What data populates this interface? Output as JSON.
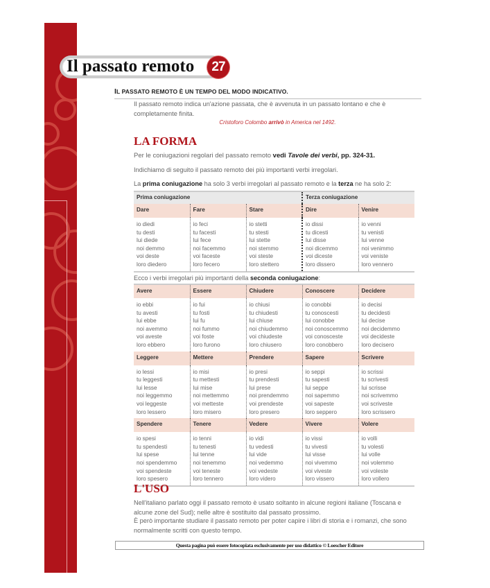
{
  "header": {
    "title": "Il passato remoto",
    "chapter_number": "27",
    "accent_color": "#b0141b"
  },
  "subhead": {
    "first_letter": "I",
    "rest": "l passato remoto è un tempo del modo indicativo."
  },
  "intro": {
    "text": "Il passato remoto indica un'azione passata, che è avvenuta in un passato lontano e che è completamente finita.",
    "example_pre": "Cristoforo Colombo ",
    "example_verb": "arrivò",
    "example_post": " in America nel 1492."
  },
  "forma": {
    "heading": "LA FORMA",
    "p1_pre": "Per le coniugazioni regolari del passato remoto ",
    "p1_bold": "vedi ",
    "p1_italic": "Tavole dei verbi",
    "p1_post": ", pp. 324-31.",
    "p2": "Indichiamo di seguito il passato remoto dei più importanti verbi irregolari.",
    "p3_a": "La ",
    "p3_b": "prima coniugazione",
    "p3_c": " ha solo 3 verbi irregolari al passato remoto e la ",
    "p3_d": "terza",
    "p3_e": " ne ha solo 2:",
    "p4_a": "Ecco i verbi irregolari più importanti della ",
    "p4_b": "seconda coniugazione",
    "p4_c": ":"
  },
  "table1": {
    "groups": [
      "Prima coniugazione",
      "Terza coniugazione"
    ],
    "verbs": [
      {
        "name": "Dare",
        "forms": [
          "io diedi",
          "tu desti",
          "lui diede",
          "noi demmo",
          "voi deste",
          "loro diedero"
        ]
      },
      {
        "name": "Fare",
        "forms": [
          "io feci",
          "tu facesti",
          "lui fece",
          "noi facemmo",
          "voi faceste",
          "loro fecero"
        ]
      },
      {
        "name": "Stare",
        "forms": [
          "io stetti",
          "tu stesti",
          "lui stette",
          "noi stemmo",
          "voi steste",
          "loro stettero"
        ]
      },
      {
        "name": "Dire",
        "forms": [
          "io dissi",
          "tu dicesti",
          "lui disse",
          "noi dicemmo",
          "voi diceste",
          "loro dissero"
        ]
      },
      {
        "name": "Venire",
        "forms": [
          "io venni",
          "tu venisti",
          "lui venne",
          "noi venimmo",
          "voi veniste",
          "loro vennero"
        ]
      }
    ]
  },
  "table2": {
    "rows": [
      [
        {
          "name": "Avere",
          "forms": [
            "io ebbi",
            "tu avesti",
            "lui ebbe",
            "noi avemmo",
            "voi aveste",
            "loro ebbero"
          ]
        },
        {
          "name": "Essere",
          "forms": [
            "io fui",
            "tu fosti",
            "lui fu",
            "noi fummo",
            "voi foste",
            "loro furono"
          ]
        },
        {
          "name": "Chiudere",
          "forms": [
            "io chiusi",
            "tu chiudesti",
            "lui chiuse",
            "noi chiudemmo",
            "voi chiudeste",
            "loro chiusero"
          ]
        },
        {
          "name": "Conoscere",
          "forms": [
            "io conobbi",
            "tu conoscesti",
            "lui conobbe",
            "noi conoscemmo",
            "voi conosceste",
            "loro conobbero"
          ]
        },
        {
          "name": "Decidere",
          "forms": [
            "io decisi",
            "tu decidesti",
            "lui decise",
            "noi decidemmo",
            "voi decideste",
            "loro decisero"
          ]
        }
      ],
      [
        {
          "name": "Leggere",
          "forms": [
            "io lessi",
            "tu leggesti",
            "lui lesse",
            "noi leggemmo",
            "voi leggeste",
            "loro lessero"
          ]
        },
        {
          "name": "Mettere",
          "forms": [
            "io misi",
            "tu mettesti",
            "lui mise",
            "noi mettemmo",
            "voi metteste",
            "loro misero"
          ]
        },
        {
          "name": "Prendere",
          "forms": [
            "io presi",
            "tu prendesti",
            "lui prese",
            "noi prendemmo",
            "voi prendeste",
            "loro presero"
          ]
        },
        {
          "name": "Sapere",
          "forms": [
            "io seppi",
            "tu sapesti",
            "lui seppe",
            "noi sapemmo",
            "voi sapeste",
            "loro seppero"
          ]
        },
        {
          "name": "Scrivere",
          "forms": [
            "io scrissi",
            "tu scrivesti",
            "lui scrisse",
            "noi scrivemmo",
            "voi scriveste",
            "loro scrissero"
          ]
        }
      ],
      [
        {
          "name": "Spendere",
          "forms": [
            "io spesi",
            "tu spendesti",
            "lui spese",
            "noi spendemmo",
            "voi spendeste",
            "loro spesero"
          ]
        },
        {
          "name": "Tenere",
          "forms": [
            "io tenni",
            "tu tenesti",
            "lui tenne",
            "noi tenemmo",
            "voi teneste",
            "loro tennero"
          ]
        },
        {
          "name": "Vedere",
          "forms": [
            "io vidi",
            "tu vedesti",
            "lui vide",
            "noi vedemmo",
            "voi vedeste",
            "loro videro"
          ]
        },
        {
          "name": "Vivere",
          "forms": [
            "io vissi",
            "tu vivesti",
            "lui visse",
            "noi vivemmo",
            "voi viveste",
            "loro vissero"
          ]
        },
        {
          "name": "Volere",
          "forms": [
            "io volli",
            "tu volesti",
            "lui volle",
            "noi volemmo",
            "voi voleste",
            "loro vollero"
          ]
        }
      ]
    ]
  },
  "uso": {
    "heading": "L'USO",
    "p1": "Nell'italiano parlato oggi il passato remoto è usato soltanto in alcune regioni italiane (Toscana e alcune zone del Sud); nelle altre è sostituito dal passato prossimo.",
    "p2": "È però importante studiare il passato remoto per poter capire i libri di storia e i romanzi, che sono normalmente scritti con questo tempo."
  },
  "footer": "Questa pagina può essere fotocopiata esclusivamente per uso didattico © Loescher Editore"
}
